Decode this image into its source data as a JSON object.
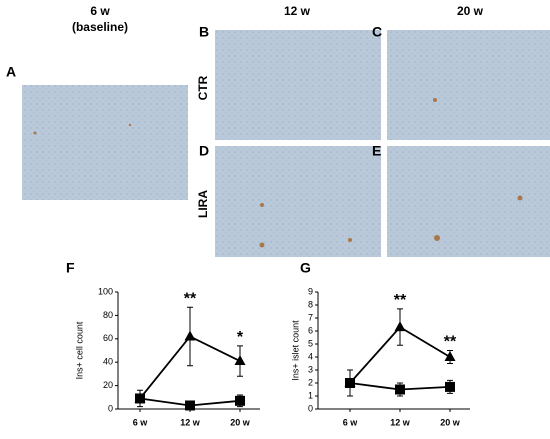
{
  "figure": {
    "headers": [
      [
        "6 w",
        "(baseline)"
      ],
      [
        "12 w"
      ],
      [
        "20 w"
      ]
    ],
    "row_labels": [
      "CTR",
      "LIRA"
    ],
    "panel_letters": [
      "A",
      "B",
      "C",
      "D",
      "E"
    ]
  },
  "chart_data": [
    {
      "type": "line",
      "label": "F",
      "ylabel": "Ins+ cell count",
      "categories": [
        "6 w",
        "12 w",
        "20 w"
      ],
      "ylim": [
        0,
        100
      ],
      "yticks": [
        0,
        20,
        40,
        60,
        80,
        100
      ],
      "series": [
        {
          "marker": "triangle",
          "color": "#000000",
          "values": [
            9,
            62,
            41
          ],
          "errors": [
            7,
            25,
            13
          ]
        },
        {
          "marker": "square",
          "color": "#000000",
          "values": [
            9,
            3,
            7
          ],
          "errors": [
            3,
            2,
            5
          ]
        }
      ],
      "value_annotations": [
        null,
        "**",
        "*"
      ]
    },
    {
      "type": "line",
      "label": "G",
      "ylabel": "Ins+ islet count",
      "categories": [
        "6 w",
        "12 w",
        "20 w"
      ],
      "ylim": [
        0,
        9
      ],
      "yticks": [
        0,
        1,
        2,
        3,
        4,
        5,
        6,
        7,
        8,
        9
      ],
      "series": [
        {
          "marker": "triangle",
          "color": "#000000",
          "values": [
            2,
            6.3,
            4
          ],
          "errors": [
            1,
            1.4,
            0.5
          ]
        },
        {
          "marker": "square",
          "color": "#000000",
          "values": [
            2,
            1.5,
            1.7
          ],
          "errors": [
            1,
            0.5,
            0.5
          ]
        }
      ],
      "value_annotations": [
        null,
        "**",
        "**"
      ]
    }
  ]
}
